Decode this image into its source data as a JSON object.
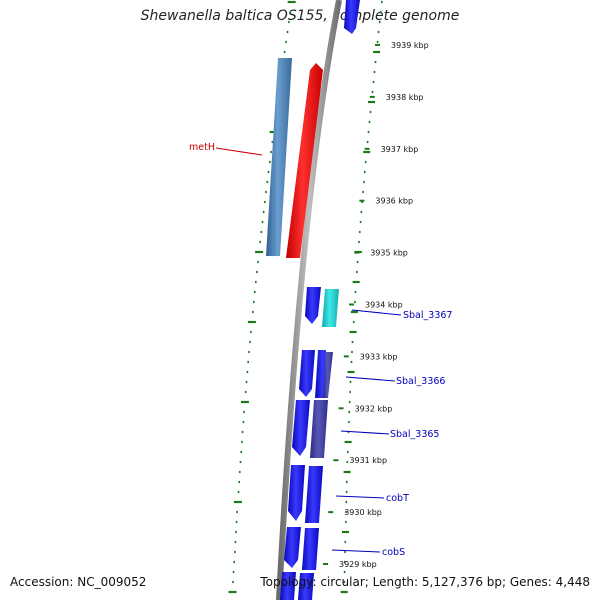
{
  "map": {
    "title": "Shewanella baltica OS155, complete genome",
    "accession": "Accession: NC_009052",
    "summary": "Topology: circular; Length: 5,127,376 bp; Genes: 4,448"
  },
  "ticks": [
    {
      "label": "3939 kbp",
      "kbp": 3939
    },
    {
      "label": "3938 kbp",
      "kbp": 3938
    },
    {
      "label": "3937 kbp",
      "kbp": 3937
    },
    {
      "label": "3936 kbp",
      "kbp": 3936
    },
    {
      "label": "3935 kbp",
      "kbp": 3935
    },
    {
      "label": "3934 kbp",
      "kbp": 3934
    },
    {
      "label": "3933 kbp",
      "kbp": 3933
    },
    {
      "label": "3932 kbp",
      "kbp": 3932
    },
    {
      "label": "3931 kbp",
      "kbp": 3931
    },
    {
      "label": "3930 kbp",
      "kbp": 3930
    },
    {
      "label": "3929 kbp",
      "kbp": 3929
    }
  ],
  "gene_labels": [
    {
      "name": "metH",
      "color": "#cc0000"
    },
    {
      "name": "Sbal_3367",
      "color": "#0000bb"
    },
    {
      "name": "Sbal_3366",
      "color": "#0000bb"
    },
    {
      "name": "Sbal_3365",
      "color": "#0000bb"
    },
    {
      "name": "cobT",
      "color": "#0000bb"
    },
    {
      "name": "cobS",
      "color": "#0000bb"
    }
  ],
  "colors": {
    "backbone": "#8c8c8c",
    "gc_track": "#1a7a1a",
    "gene_blue": "#1414e6",
    "gene_red": "#ee1111",
    "gene_steel": "#4a7fb5",
    "gene_cyan": "#22cccc",
    "gene_slate": "#4040a0"
  }
}
